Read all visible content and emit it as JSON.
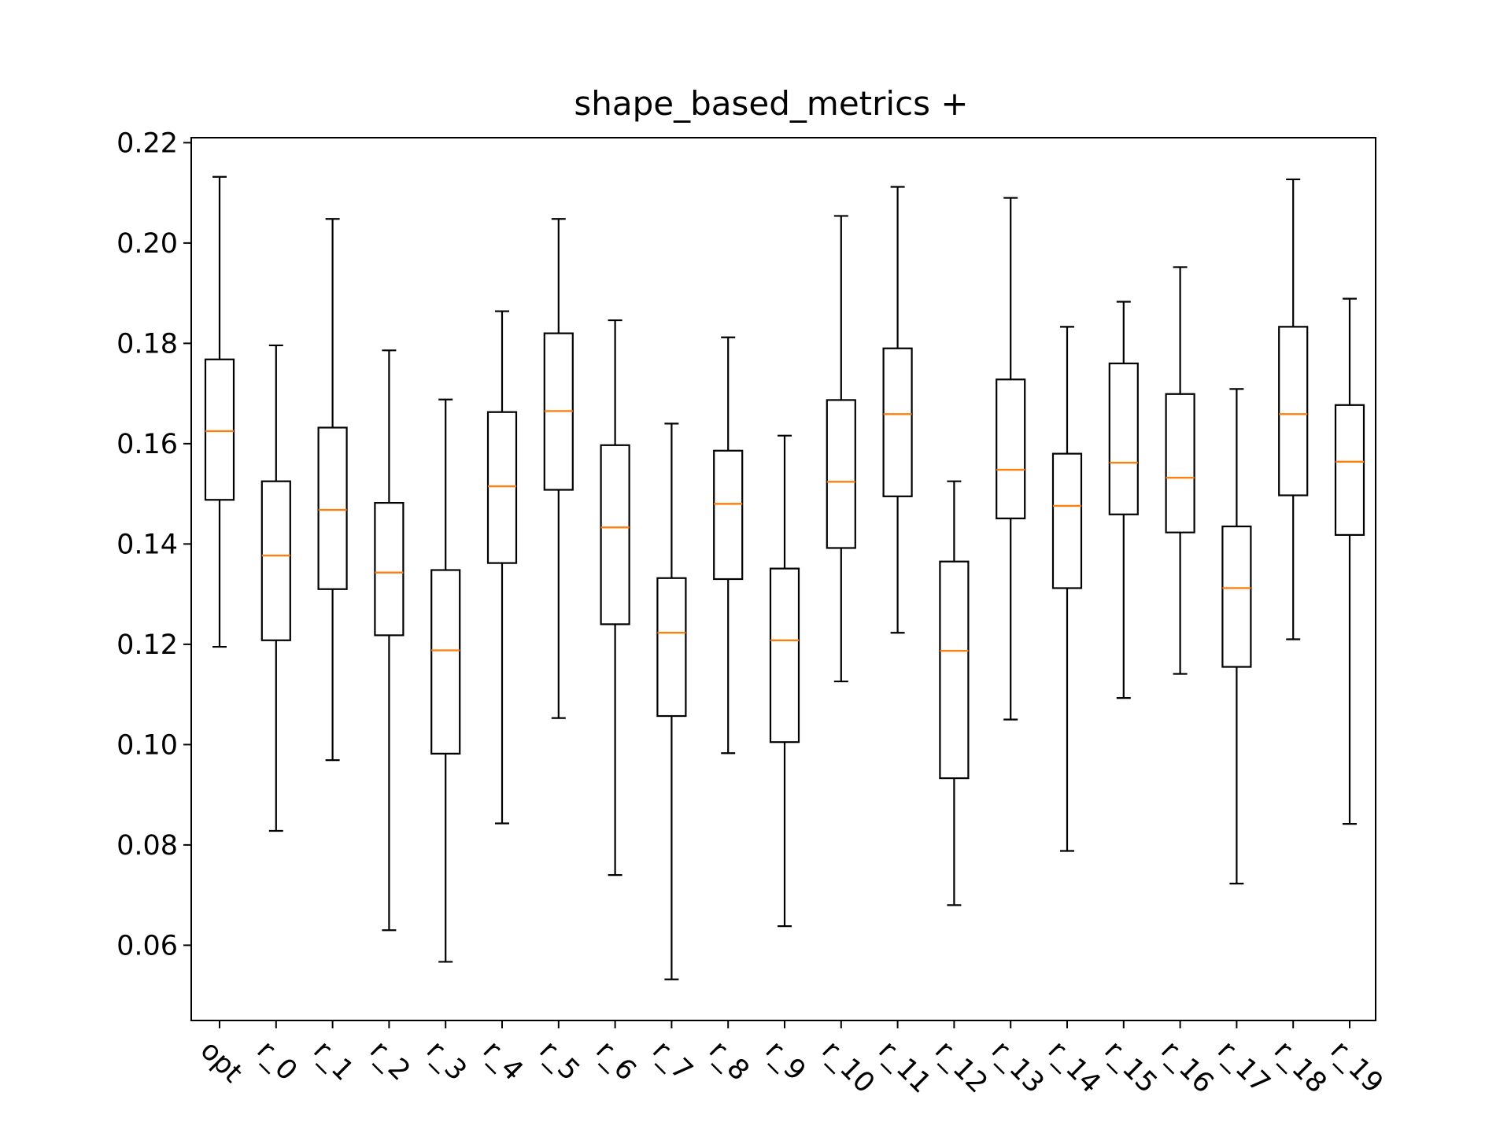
{
  "chart_data": {
    "type": "box",
    "title": "shape_based_metrics +",
    "xlabel": "",
    "ylabel": "",
    "ylim": [
      0.045,
      0.221
    ],
    "yticks": [
      "0.06",
      "0.08",
      "0.10",
      "0.12",
      "0.14",
      "0.16",
      "0.18",
      "0.20",
      "0.22"
    ],
    "grid": false,
    "colors": {
      "box": "#000000",
      "median": "#ff7f0e"
    },
    "categories": [
      "opt",
      "r_0",
      "r_1",
      "r_2",
      "r_3",
      "r_4",
      "r_5",
      "r_6",
      "r_7",
      "r_8",
      "r_9",
      "r_10",
      "r_11",
      "r_12",
      "r_13",
      "r_14",
      "r_15",
      "r_16",
      "r_17",
      "r_18",
      "r_19"
    ],
    "boxes": [
      {
        "whislo": 0.1195,
        "q1": 0.1488,
        "med": 0.1625,
        "q3": 0.1768,
        "whishi": 0.2132
      },
      {
        "whislo": 0.0828,
        "q1": 0.1208,
        "med": 0.1377,
        "q3": 0.1525,
        "whishi": 0.1796
      },
      {
        "whislo": 0.0969,
        "q1": 0.131,
        "med": 0.1468,
        "q3": 0.1632,
        "whishi": 0.2048
      },
      {
        "whislo": 0.063,
        "q1": 0.1218,
        "med": 0.1343,
        "q3": 0.1482,
        "whishi": 0.1786
      },
      {
        "whislo": 0.0567,
        "q1": 0.0982,
        "med": 0.1188,
        "q3": 0.1348,
        "whishi": 0.1688
      },
      {
        "whislo": 0.0843,
        "q1": 0.1362,
        "med": 0.1515,
        "q3": 0.1663,
        "whishi": 0.1864
      },
      {
        "whislo": 0.1053,
        "q1": 0.1508,
        "med": 0.1665,
        "q3": 0.182,
        "whishi": 0.2048
      },
      {
        "whislo": 0.074,
        "q1": 0.124,
        "med": 0.1433,
        "q3": 0.1597,
        "whishi": 0.1846
      },
      {
        "whislo": 0.0532,
        "q1": 0.1057,
        "med": 0.1223,
        "q3": 0.1332,
        "whishi": 0.164
      },
      {
        "whislo": 0.0983,
        "q1": 0.133,
        "med": 0.148,
        "q3": 0.1586,
        "whishi": 0.1812
      },
      {
        "whislo": 0.0638,
        "q1": 0.1005,
        "med": 0.1208,
        "q3": 0.1351,
        "whishi": 0.1616
      },
      {
        "whislo": 0.1126,
        "q1": 0.1392,
        "med": 0.1524,
        "q3": 0.1687,
        "whishi": 0.2054
      },
      {
        "whislo": 0.1223,
        "q1": 0.1495,
        "med": 0.1659,
        "q3": 0.179,
        "whishi": 0.2112
      },
      {
        "whislo": 0.068,
        "q1": 0.0933,
        "med": 0.1187,
        "q3": 0.1365,
        "whishi": 0.1525
      },
      {
        "whislo": 0.105,
        "q1": 0.1451,
        "med": 0.1548,
        "q3": 0.1728,
        "whishi": 0.209
      },
      {
        "whislo": 0.0788,
        "q1": 0.1312,
        "med": 0.1476,
        "q3": 0.158,
        "whishi": 0.1833
      },
      {
        "whislo": 0.1093,
        "q1": 0.1459,
        "med": 0.1562,
        "q3": 0.176,
        "whishi": 0.1883
      },
      {
        "whislo": 0.1141,
        "q1": 0.1423,
        "med": 0.1532,
        "q3": 0.1699,
        "whishi": 0.1952
      },
      {
        "whislo": 0.0723,
        "q1": 0.1155,
        "med": 0.1312,
        "q3": 0.1435,
        "whishi": 0.1709
      },
      {
        "whislo": 0.121,
        "q1": 0.1497,
        "med": 0.1659,
        "q3": 0.1833,
        "whishi": 0.2127
      },
      {
        "whislo": 0.0842,
        "q1": 0.1418,
        "med": 0.1564,
        "q3": 0.1677,
        "whishi": 0.1889
      }
    ]
  }
}
